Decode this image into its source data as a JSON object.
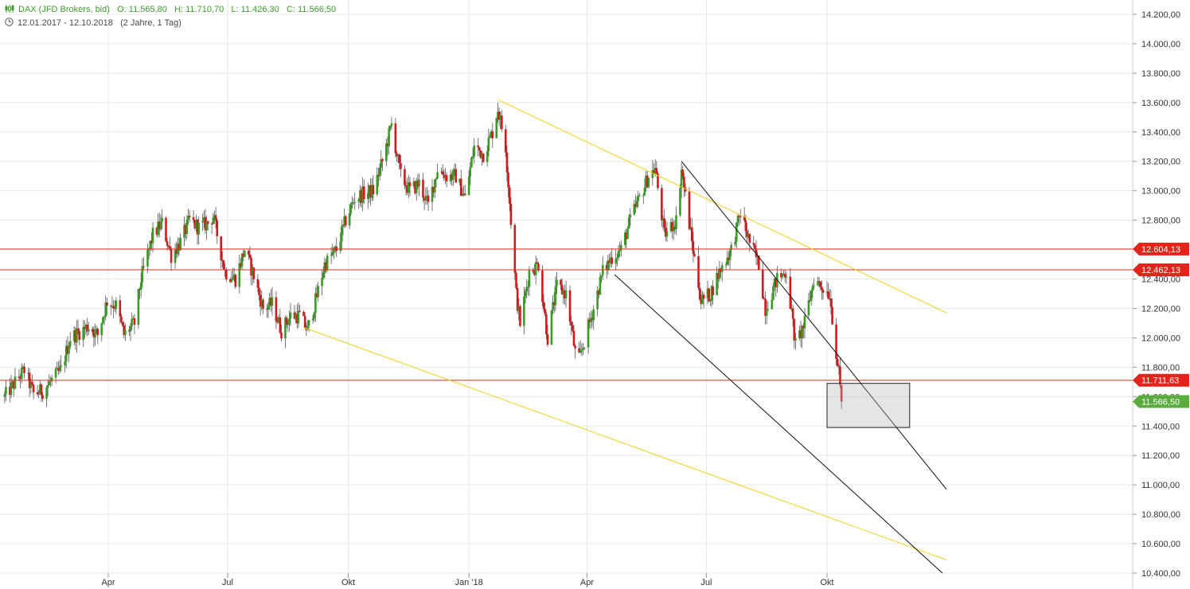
{
  "header": {
    "symbol": "DAX (JFD Brokers, bid)",
    "open": "O: 11.565,80",
    "high": "H: 11.710,70",
    "low": "L: 11.426,30",
    "close": "C: 11.566,50",
    "range": "12.01.2017 - 12.10.2018",
    "span": "(2 Jahre, 1 Tag)"
  },
  "colors": {
    "up": "#3a9d23",
    "down": "#d2191c",
    "wick": "#555555",
    "resistance": "#e0321e",
    "channel_yellow": "#f2d21a",
    "channel_black": "#111111",
    "close_badge": "#5aad3c",
    "level_badge": "#e4241b",
    "grid": "#e8e8e8"
  },
  "chart_data": {
    "type": "candlestick",
    "x_range": [
      "2017-01-12",
      "2018-10-12"
    ],
    "ylim": [
      10400,
      14200
    ],
    "y_ticks": [
      "14.200,00",
      "14.000,00",
      "13.800,00",
      "13.600,00",
      "13.400,00",
      "13.200,00",
      "13.000,00",
      "12.800,00",
      "12.600,00",
      "12.400,00",
      "12.200,00",
      "12.000,00",
      "11.800,00",
      "11.600,00",
      "11.400,00",
      "11.200,00",
      "11.000,00",
      "10.800,00",
      "10.600,00",
      "10.400,00"
    ],
    "x_ticks": [
      {
        "label": "Apr",
        "date": "2017-04-01"
      },
      {
        "label": "Jul",
        "date": "2017-07-01"
      },
      {
        "label": "Okt",
        "date": "2017-10-01"
      },
      {
        "label": "Jan '18",
        "date": "2018-01-01"
      },
      {
        "label": "Apr",
        "date": "2018-04-01"
      },
      {
        "label": "Jul",
        "date": "2018-07-01"
      },
      {
        "label": "Okt",
        "date": "2018-10-01"
      }
    ],
    "close_path": [
      [
        "2017-01-12",
        11600
      ],
      [
        "2017-01-27",
        11780
      ],
      [
        "2017-02-03",
        11620
      ],
      [
        "2017-02-10",
        11640
      ],
      [
        "2017-02-24",
        11780
      ],
      [
        "2017-03-03",
        12000
      ],
      [
        "2017-03-17",
        12080
      ],
      [
        "2017-03-24",
        12020
      ],
      [
        "2017-03-31",
        12250
      ],
      [
        "2017-04-07",
        12220
      ],
      [
        "2017-04-13",
        12020
      ],
      [
        "2017-04-21",
        12100
      ],
      [
        "2017-04-26",
        12400
      ],
      [
        "2017-05-05",
        12700
      ],
      [
        "2017-05-12",
        12780
      ],
      [
        "2017-05-19",
        12560
      ],
      [
        "2017-05-26",
        12650
      ],
      [
        "2017-06-02",
        12800
      ],
      [
        "2017-06-09",
        12750
      ],
      [
        "2017-06-16",
        12780
      ],
      [
        "2017-06-20",
        12830
      ],
      [
        "2017-06-29",
        12450
      ],
      [
        "2017-07-07",
        12400
      ],
      [
        "2017-07-14",
        12600
      ],
      [
        "2017-07-21",
        12420
      ],
      [
        "2017-07-28",
        12200
      ],
      [
        "2017-08-04",
        12230
      ],
      [
        "2017-08-11",
        12050
      ],
      [
        "2017-08-18",
        12150
      ],
      [
        "2017-08-25",
        12150
      ],
      [
        "2017-08-31",
        12050
      ],
      [
        "2017-09-06",
        12250
      ],
      [
        "2017-09-13",
        12500
      ],
      [
        "2017-09-22",
        12600
      ],
      [
        "2017-09-29",
        12800
      ],
      [
        "2017-10-06",
        12950
      ],
      [
        "2017-10-13",
        12980
      ],
      [
        "2017-10-20",
        13000
      ],
      [
        "2017-10-27",
        13200
      ],
      [
        "2017-11-03",
        13450
      ],
      [
        "2017-11-10",
        13100
      ],
      [
        "2017-11-17",
        13000
      ],
      [
        "2017-11-24",
        13050
      ],
      [
        "2017-12-01",
        12900
      ],
      [
        "2017-12-08",
        13150
      ],
      [
        "2017-12-15",
        13100
      ],
      [
        "2017-12-22",
        13100
      ],
      [
        "2017-12-29",
        12950
      ],
      [
        "2018-01-05",
        13300
      ],
      [
        "2018-01-12",
        13250
      ],
      [
        "2018-01-19",
        13400
      ],
      [
        "2018-01-23",
        13560
      ],
      [
        "2018-01-29",
        13300
      ],
      [
        "2018-02-02",
        12800
      ],
      [
        "2018-02-06",
        12300
      ],
      [
        "2018-02-09",
        12100
      ],
      [
        "2018-02-16",
        12450
      ],
      [
        "2018-02-23",
        12500
      ],
      [
        "2018-03-02",
        12000
      ],
      [
        "2018-03-09",
        12350
      ],
      [
        "2018-03-16",
        12300
      ],
      [
        "2018-03-23",
        11900
      ],
      [
        "2018-03-26",
        11850
      ],
      [
        "2018-04-06",
        12200
      ],
      [
        "2018-04-13",
        12450
      ],
      [
        "2018-04-20",
        12550
      ],
      [
        "2018-04-27",
        12600
      ],
      [
        "2018-05-04",
        12800
      ],
      [
        "2018-05-11",
        12950
      ],
      [
        "2018-05-18",
        13100
      ],
      [
        "2018-05-23",
        13150
      ],
      [
        "2018-05-30",
        12700
      ],
      [
        "2018-06-08",
        12800
      ],
      [
        "2018-06-12",
        13150
      ],
      [
        "2018-06-20",
        12650
      ],
      [
        "2018-06-27",
        12250
      ],
      [
        "2018-07-04",
        12300
      ],
      [
        "2018-07-11",
        12450
      ],
      [
        "2018-07-20",
        12600
      ],
      [
        "2018-07-27",
        12850
      ],
      [
        "2018-08-03",
        12650
      ],
      [
        "2018-08-10",
        12500
      ],
      [
        "2018-08-15",
        12200
      ],
      [
        "2018-08-24",
        12400
      ],
      [
        "2018-08-31",
        12450
      ],
      [
        "2018-09-07",
        11950
      ],
      [
        "2018-09-14",
        12100
      ],
      [
        "2018-09-21",
        12400
      ],
      [
        "2018-09-27",
        12350
      ],
      [
        "2018-10-03",
        12300
      ],
      [
        "2018-10-08",
        11900
      ],
      [
        "2018-10-10",
        11750
      ],
      [
        "2018-10-12",
        11566.5
      ]
    ],
    "horizontal_levels": [
      {
        "value": 12604.13,
        "label": "12.604,13"
      },
      {
        "value": 12462.13,
        "label": "12.462,13"
      },
      {
        "value": 11711.63,
        "label": "11.711,63"
      }
    ],
    "last_close": {
      "value": 11566.5,
      "label": "11.566,50"
    },
    "trend_lines": [
      {
        "color": "yellow",
        "from": {
          "date": "2018-01-23",
          "value": 13620
        },
        "to": {
          "date": "2018-12-31",
          "value": 12170
        }
      },
      {
        "color": "yellow",
        "from": {
          "date": "2017-08-28",
          "value": 12070
        },
        "to": {
          "date": "2018-12-31",
          "value": 10490
        }
      },
      {
        "color": "black",
        "from": {
          "date": "2018-06-12",
          "value": 13200
        },
        "to": {
          "date": "2018-12-31",
          "value": 10970
        }
      },
      {
        "color": "black",
        "from": {
          "date": "2018-04-22",
          "value": 12430
        },
        "to": {
          "date": "2018-12-28",
          "value": 10400
        }
      }
    ],
    "target_box": {
      "from_date": "2018-10-01",
      "to_date": "2018-12-03",
      "top": 11690,
      "bottom": 11390
    }
  }
}
